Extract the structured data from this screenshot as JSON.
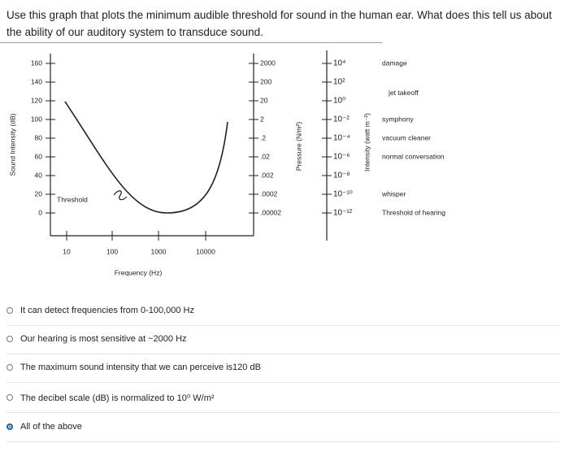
{
  "question": "Use this graph that plots the minimum audible threshold for sound in the human ear. What does this tell us about the ability of our auditory system to transduce sound.",
  "figure": {
    "y_axis_label": "Sound Intensity (dB)",
    "x_axis_label": "Frequency (Hz)",
    "db_ticks": [
      "160",
      "140",
      "120",
      "100",
      "80",
      "60",
      "40",
      "20",
      "0"
    ],
    "freq_ticks": [
      "10",
      "100",
      "1000",
      "10000"
    ],
    "curve_label": "Threshold",
    "pressure_label": "Pressure (N/m²)",
    "pressure_ticks": [
      "2000",
      "200",
      "20",
      "2",
      ".2",
      ".02",
      ".002",
      ".0002",
      ".00002"
    ],
    "intensity_label": "Intensity (watt m⁻²)",
    "intensity_ticks": [
      "10⁴",
      "10²",
      "10⁰",
      "10⁻²",
      "10⁻⁴",
      "10⁻⁶",
      "10⁻⁸",
      "10⁻¹⁰",
      "10⁻¹²"
    ],
    "sounds": [
      {
        "label": "damage",
        "level": 0
      },
      {
        "label": "jet takeoff",
        "level": 1.5
      },
      {
        "label": "symphony",
        "level": 3
      },
      {
        "label": "vacuum cleaner",
        "level": 4
      },
      {
        "label": "normal conversation",
        "level": 5
      },
      {
        "label": "whisper",
        "level": 7
      },
      {
        "label": "Threshold of hearing",
        "level": 8
      }
    ]
  },
  "options": [
    {
      "text": "It can detect frequencies from 0-100,000 Hz",
      "selected": false
    },
    {
      "text": "Our hearing is most sensitive at ~2000 Hz",
      "selected": false
    },
    {
      "text": "The maximum sound intensity that we can perceive is120 dB",
      "selected": false
    },
    {
      "text": "The decibel scale (dB) is normalized to 10⁰ W/m²",
      "selected": false
    },
    {
      "text": "All of the above",
      "selected": true
    }
  ]
}
